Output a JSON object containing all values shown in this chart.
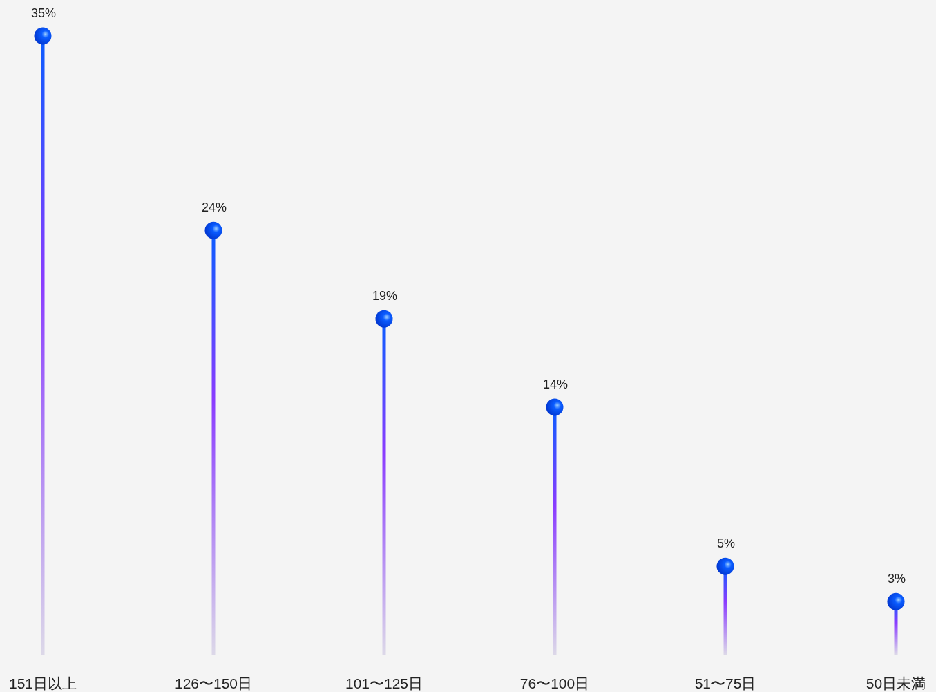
{
  "chart_data": {
    "type": "lollipop",
    "categories": [
      "151日以上",
      "126〜150日",
      "101〜125日",
      "76〜100日",
      "51〜75日",
      "50日未満"
    ],
    "series": [
      {
        "color": "#0a5cff",
        "values": [
          35,
          24,
          19,
          14,
          5,
          3
        ],
        "value_labels": [
          "35%",
          "24%",
          "19%",
          "14%",
          "5%",
          "3%"
        ]
      }
    ]
  }
}
